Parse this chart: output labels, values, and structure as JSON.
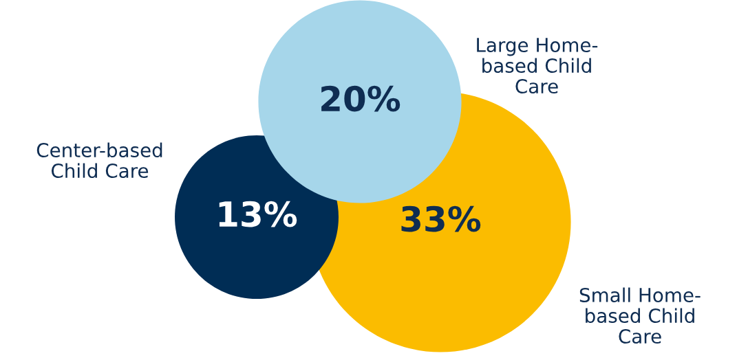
{
  "chart_data": {
    "type": "other",
    "categories": [
      "Small Home-\nbased Child\nCare",
      "Center-based\nChild Care",
      "Large Home-\nbased Child\nCare"
    ],
    "values": [
      33,
      13,
      20
    ],
    "colors": [
      "#fbbc00",
      "#002d55",
      "#a6d6ea"
    ],
    "value_labels": [
      "33%",
      "13%",
      "20%"
    ]
  }
}
